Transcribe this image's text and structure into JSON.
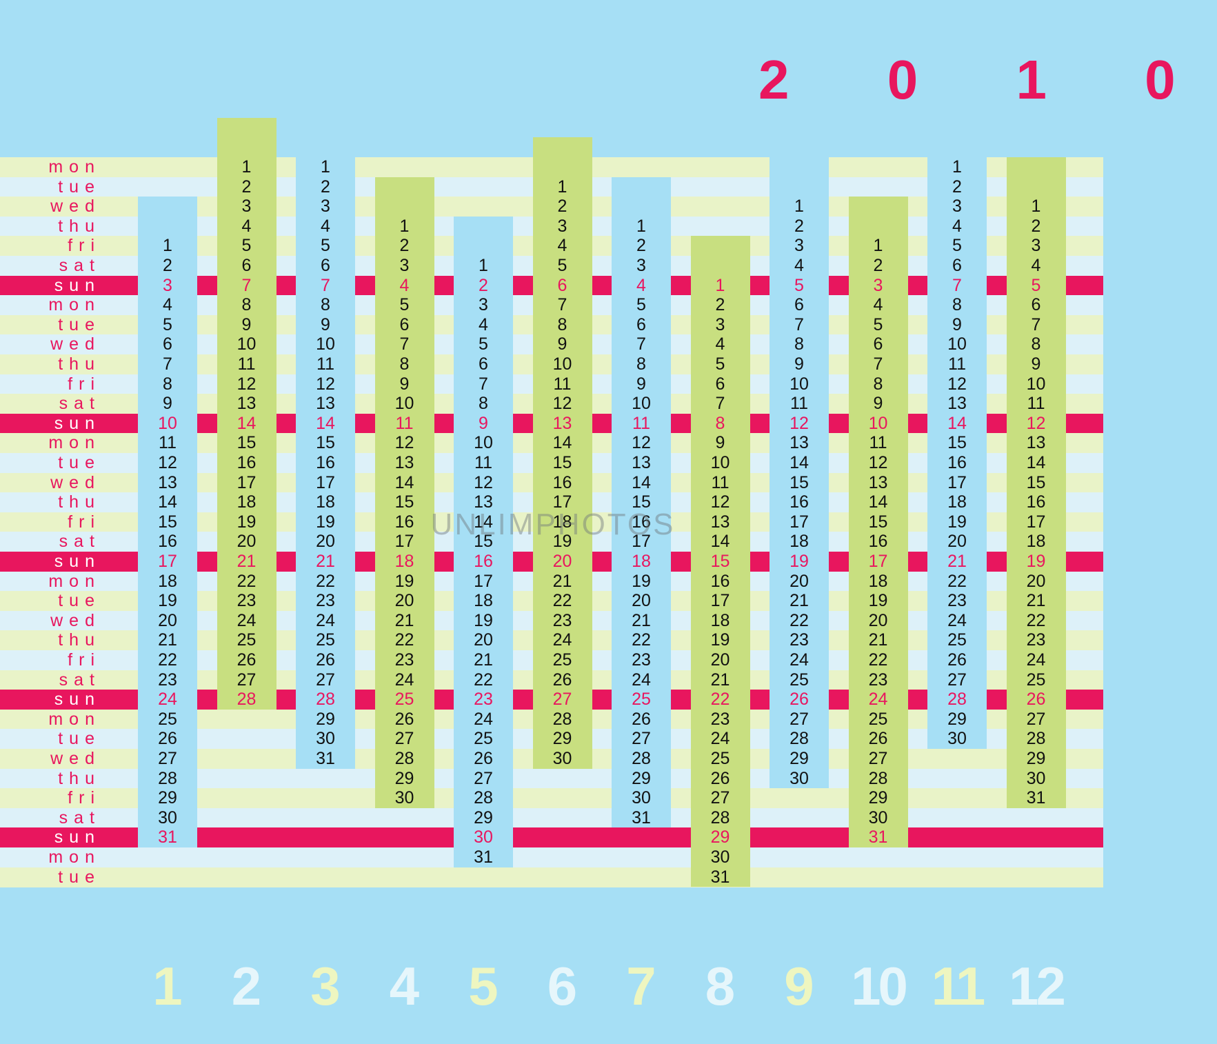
{
  "year": "2 0 1 0",
  "watermark": "UNLIMPHOTOS",
  "weekdays": [
    "mon",
    "tue",
    "wed",
    "thu",
    "fri",
    "sat",
    "sun"
  ],
  "months": [
    {
      "number": "1",
      "offset": 4,
      "days": 31
    },
    {
      "number": "2",
      "offset": 0,
      "days": 28
    },
    {
      "number": "3",
      "offset": 0,
      "days": 31
    },
    {
      "number": "4",
      "offset": 3,
      "days": 30
    },
    {
      "number": "5",
      "offset": 5,
      "days": 31
    },
    {
      "number": "6",
      "offset": 1,
      "days": 30
    },
    {
      "number": "7",
      "offset": 3,
      "days": 31
    },
    {
      "number": "8",
      "offset": 6,
      "days": 31
    },
    {
      "number": "9",
      "offset": 2,
      "days": 30
    },
    {
      "number": "10",
      "offset": 4,
      "days": 31
    },
    {
      "number": "11",
      "offset": 0,
      "days": 30
    },
    {
      "number": "12",
      "offset": 2,
      "days": 31
    }
  ],
  "colors": {
    "background": "#a6dff5",
    "stripe_yellow": "#e9f3c8",
    "stripe_white": "#ddf1f9",
    "sunday_band": "#e8165e",
    "green_column": "#c8df80",
    "blue_column": "#a6dff5",
    "accent": "#e8165e",
    "month_number_yellow": "#eef6c0",
    "month_number_white": "#e6f6fb"
  }
}
